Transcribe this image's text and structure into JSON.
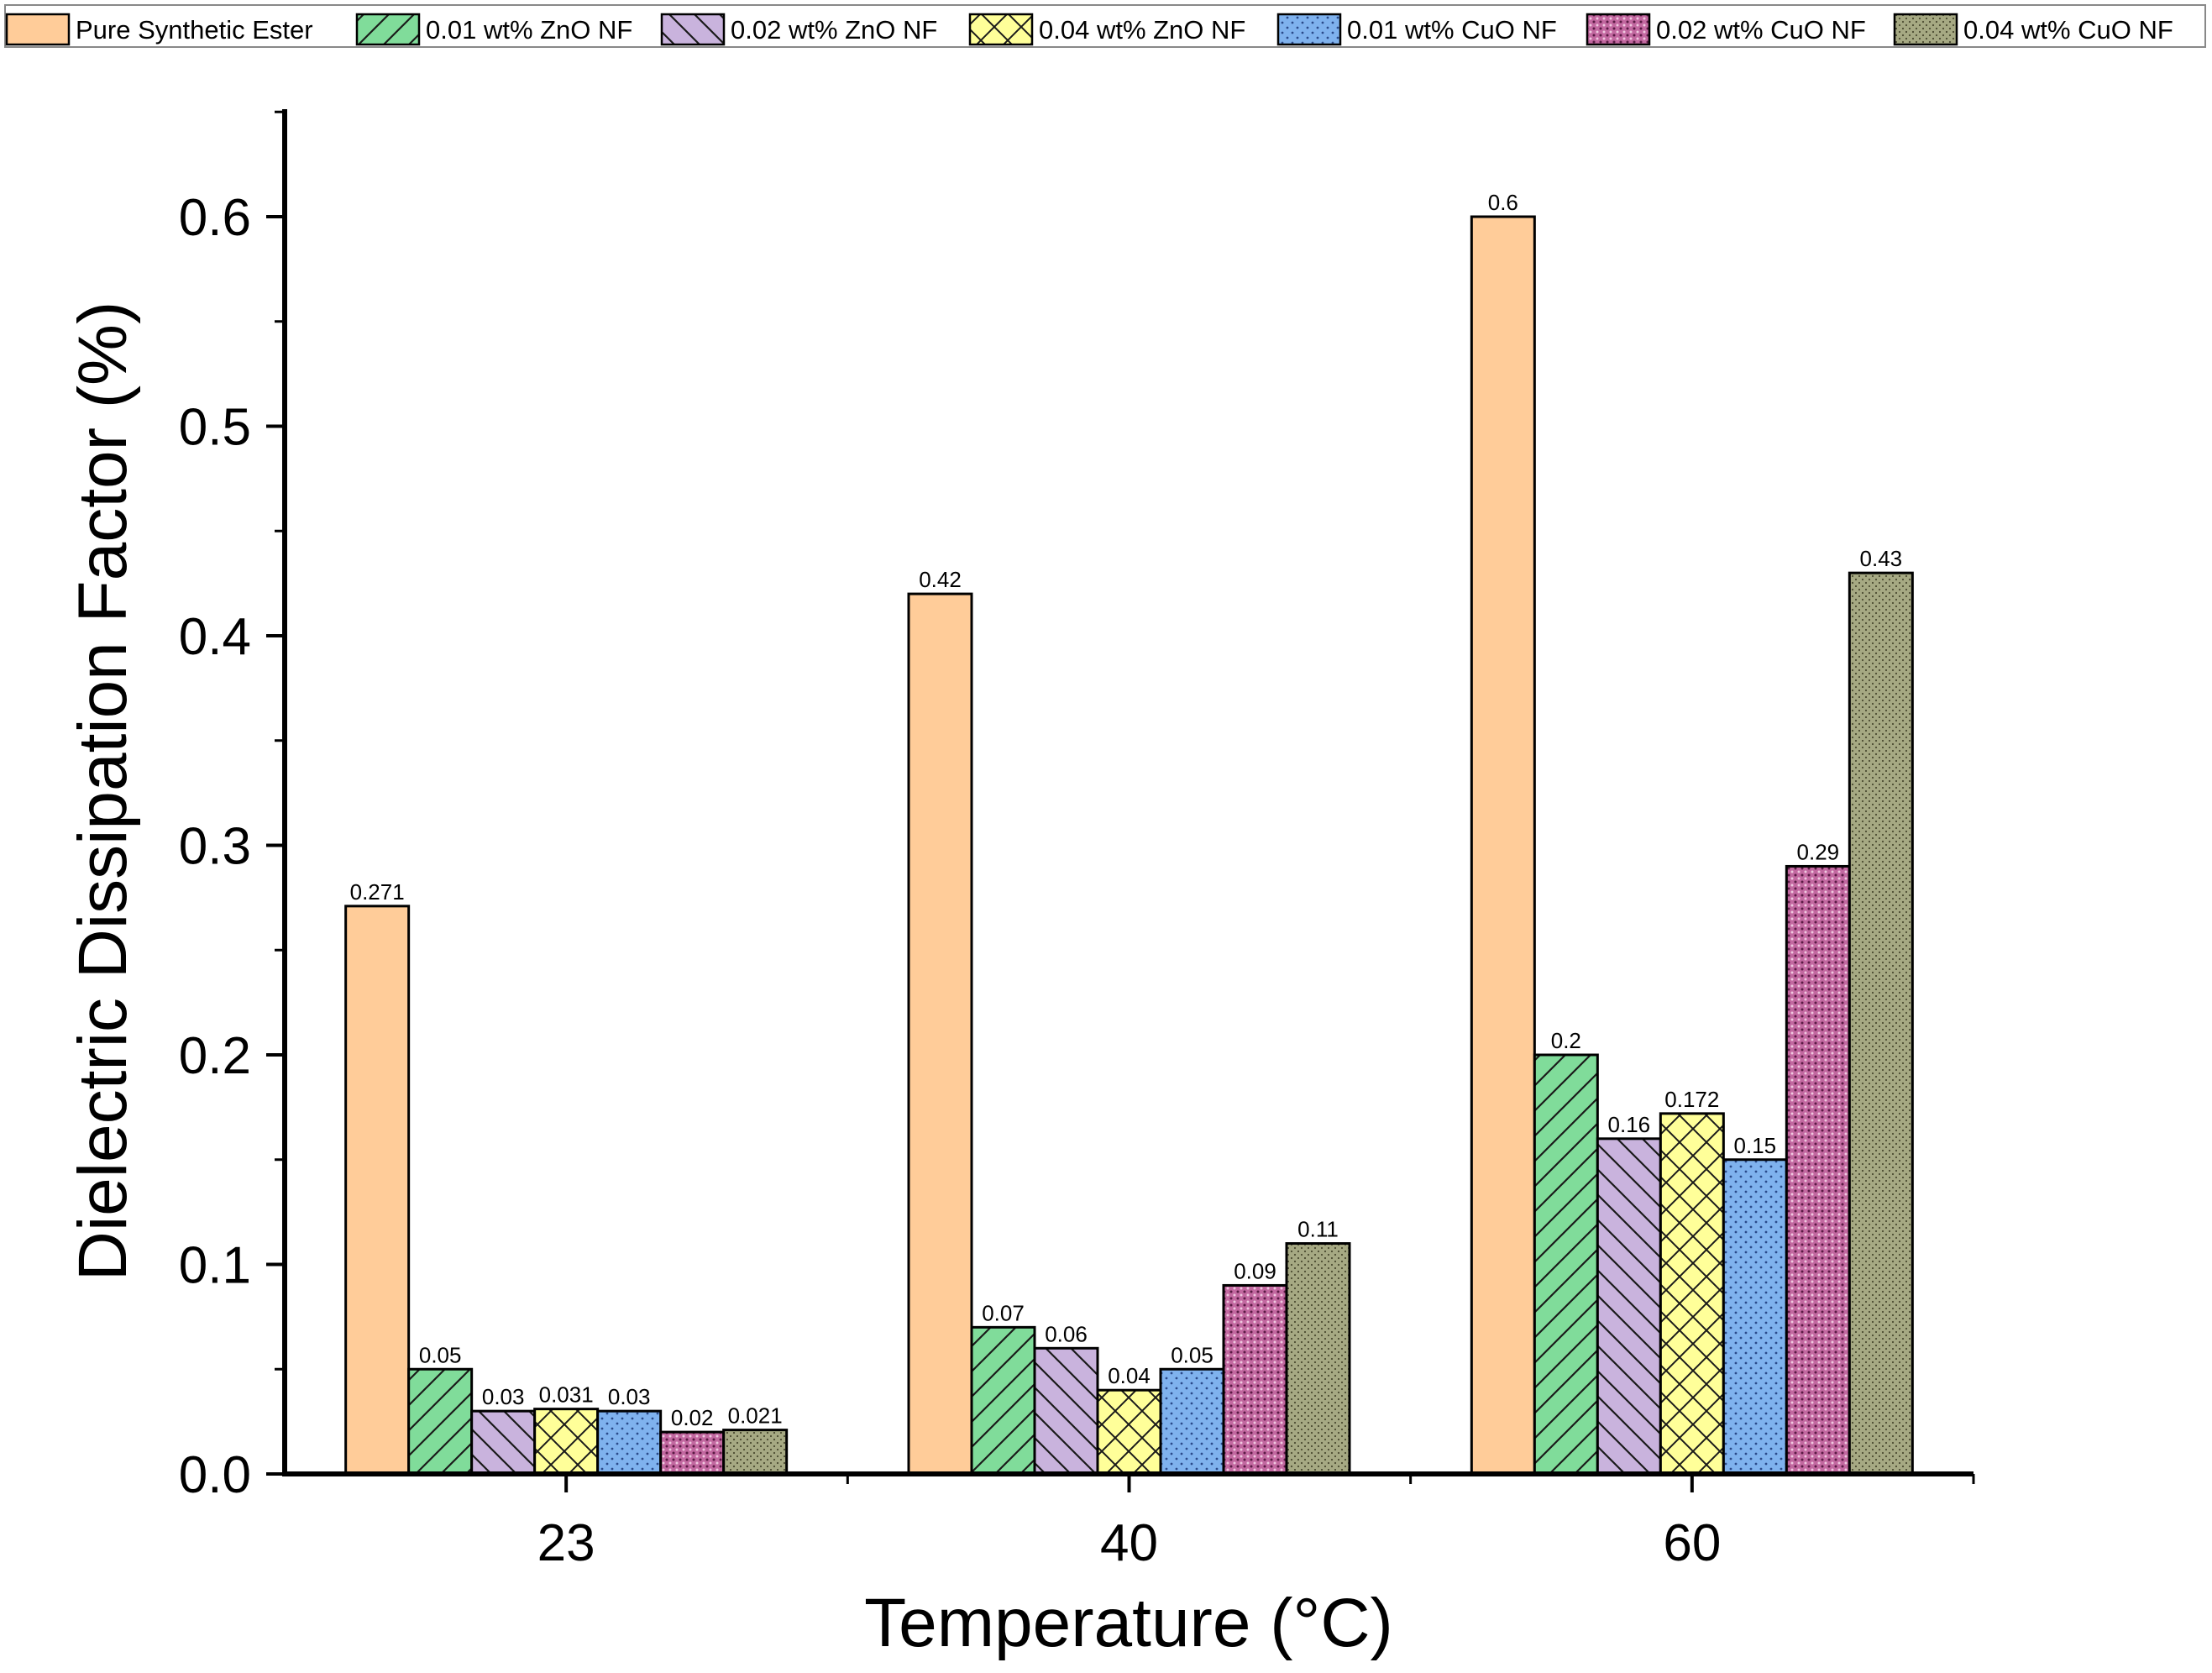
{
  "chart_data": {
    "type": "bar",
    "xlabel": "Temperature (°C)",
    "ylabel": "Dielectric Dissipation Factor (%)",
    "categories": [
      "23",
      "40",
      "60"
    ],
    "ylim": [
      0,
      0.65
    ],
    "yticks": [
      "0.0",
      "0.1",
      "0.2",
      "0.3",
      "0.4",
      "0.5",
      "0.6"
    ],
    "legend_position": "top",
    "series": [
      {
        "name": "Pure Synthetic Ester",
        "values": [
          0.271,
          0.42,
          0.6
        ],
        "labels": [
          "0.271",
          "0.42",
          "0.6"
        ],
        "color": "#FFCC99",
        "pattern": "solid"
      },
      {
        "name": "0.01 wt% ZnO NF",
        "values": [
          0.05,
          0.07,
          0.2
        ],
        "labels": [
          "0.05",
          "0.07",
          "0.2"
        ],
        "color": "#80DC9A",
        "pattern": "forward-diagonal"
      },
      {
        "name": "0.02 wt% ZnO NF",
        "values": [
          0.03,
          0.06,
          0.16
        ],
        "labels": [
          "0.03",
          "0.06",
          "0.16"
        ],
        "color": "#C9B3DD",
        "pattern": "back-diagonal"
      },
      {
        "name": "0.04 wt% ZnO NF",
        "values": [
          0.031,
          0.04,
          0.172
        ],
        "labels": [
          "0.031",
          "0.04",
          "0.172"
        ],
        "color": "#FFFF99",
        "pattern": "crosshatch"
      },
      {
        "name": "0.01 wt% CuO NF",
        "values": [
          0.03,
          0.05,
          0.15
        ],
        "labels": [
          "0.03",
          "0.05",
          "0.15"
        ],
        "color": "#7FB2EE",
        "pattern": "dots"
      },
      {
        "name": "0.02 wt% CuO NF",
        "values": [
          0.02,
          0.09,
          0.29
        ],
        "labels": [
          "0.02",
          "0.09",
          "0.29"
        ],
        "color": "#C268A0",
        "pattern": "dense-dots"
      },
      {
        "name": "0.04 wt% CuO NF",
        "values": [
          0.021,
          0.11,
          0.43
        ],
        "labels": [
          "0.021",
          "0.11",
          "0.43"
        ],
        "color": "#A6A983",
        "pattern": "fine-dots"
      }
    ]
  }
}
